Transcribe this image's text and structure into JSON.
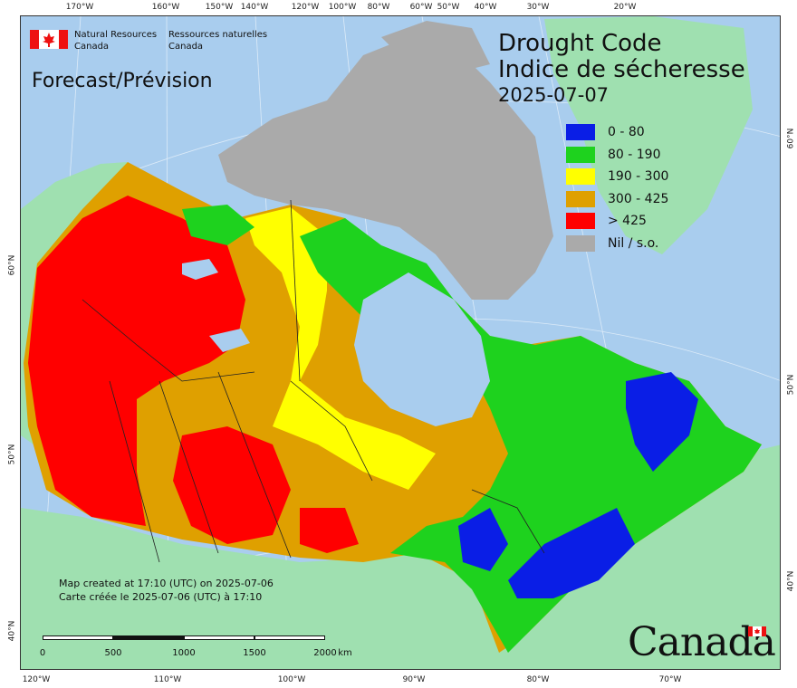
{
  "header": {
    "agency_en": [
      "Natural Resources",
      "Canada"
    ],
    "agency_fr": [
      "Ressources naturelles",
      "Canada"
    ],
    "forecast_label": "Forecast/Prévision",
    "title_en": "Drought Code",
    "title_fr": "Indice de sécheresse",
    "date": "2025-07-07"
  },
  "legend": [
    {
      "label": "0 - 80",
      "color": "#0a1ee6"
    },
    {
      "label": "80 - 190",
      "color": "#1ed21e"
    },
    {
      "label": "190 - 300",
      "color": "#ffff00"
    },
    {
      "label": "300 - 425",
      "color": "#dfa000"
    },
    {
      "label": "> 425",
      "color": "#ff0000"
    },
    {
      "label": "Nil / s.o.",
      "color": "#aaaaaa"
    }
  ],
  "credit": {
    "en": "Map created at 17:10 (UTC) on 2025-07-06",
    "fr": "Carte créée le 2025-07-06 (UTC) à 17:10"
  },
  "scale": {
    "labels": [
      "0",
      "500",
      "1000",
      "1500",
      "2000"
    ],
    "unit": "km"
  },
  "wordmark": "Canada",
  "ticks": {
    "top": [
      "170°W",
      "160°W",
      "150°W",
      "140°W",
      "120°W",
      "100°W",
      "80°W",
      "60°W",
      "50°W",
      "40°W",
      "30°W",
      "20°W"
    ],
    "bottom": [
      "120°W",
      "110°W",
      "100°W",
      "90°W",
      "80°W",
      "70°W"
    ],
    "left": [
      "60°N",
      "50°N",
      "40°N"
    ],
    "right": [
      "60°N",
      "50°N",
      "40°N"
    ]
  }
}
